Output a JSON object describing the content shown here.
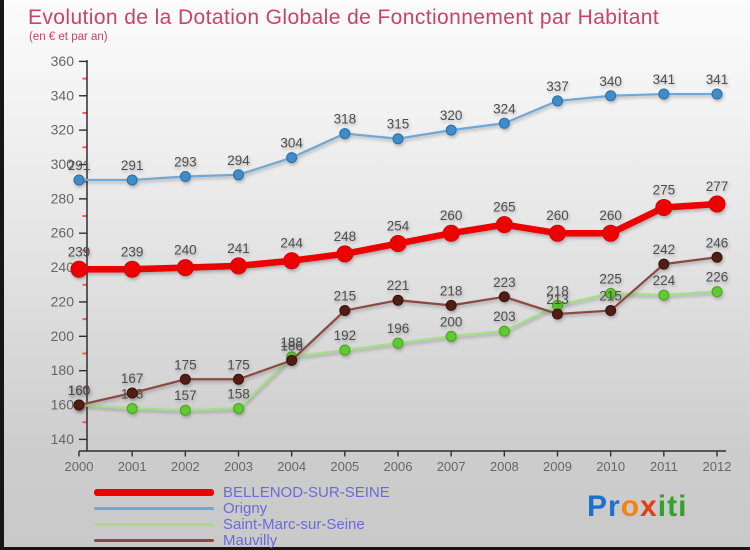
{
  "header": {
    "title": "Evolution de la Dotation Globale de Fonctionnement par Habitant",
    "subtitle": "(en € et par an)",
    "title_color": "#c94365"
  },
  "chart_data": {
    "type": "line",
    "title": "Evolution de la Dotation Globale de Fonctionnement par Habitant",
    "subtitle": "(en € et par an)",
    "xlabel": "",
    "ylabel": "",
    "x": [
      2000,
      2001,
      2002,
      2003,
      2004,
      2005,
      2006,
      2007,
      2008,
      2009,
      2010,
      2011,
      2012
    ],
    "series": [
      {
        "name": "BELLENOD-SUR-SEINE",
        "values": [
          239,
          239,
          240,
          241,
          244,
          248,
          254,
          260,
          265,
          260,
          260,
          275,
          277
        ],
        "line_color": "#ec0000",
        "dot_color": "#ec0000",
        "dot_stroke": "#d40000",
        "line_width": 6.5,
        "dot_radius": 8,
        "draw_order": 3
      },
      {
        "name": "Origny",
        "values": [
          291,
          291,
          293,
          294,
          304,
          318,
          315,
          320,
          324,
          337,
          340,
          341,
          341
        ],
        "line_color": "#6fa8d6",
        "dot_color": "#3f8cc9",
        "dot_stroke": "#2e6ea6",
        "line_width": 2.2,
        "dot_radius": 5,
        "draw_order": 0
      },
      {
        "name": "Saint-Marc-sur-Seine",
        "values": [
          160,
          158,
          157,
          158,
          188,
          192,
          196,
          200,
          203,
          218,
          225,
          224,
          226
        ],
        "line_color": "#a4df87",
        "dot_color": "#5ecb30",
        "dot_stroke": "#49a21f",
        "line_width": 2.2,
        "dot_radius": 5,
        "draw_order": 1
      },
      {
        "name": "Mauvilly",
        "values": [
          160,
          167,
          175,
          175,
          186,
          215,
          221,
          218,
          223,
          213,
          215,
          242,
          246
        ],
        "line_color": "#8a4a42",
        "dot_color": "#521d14",
        "dot_stroke": "#3a120c",
        "line_width": 2.2,
        "dot_radius": 5,
        "draw_order": 2
      }
    ],
    "ylim": [
      140,
      360
    ],
    "ytick_step": 20,
    "yticks": [
      140,
      160,
      180,
      200,
      220,
      240,
      260,
      280,
      300,
      320,
      340,
      360
    ],
    "grid": false,
    "legend_position": "bottom-left",
    "axis_color": "#2f2f2f",
    "tick_label_color": "#666666",
    "value_label_color": "#4d4d4d",
    "minor_tick_color": "#ff5555"
  },
  "legend": {
    "text_color": "#6b6bd6"
  },
  "logo": {
    "text": "Proxiti",
    "letters": [
      {
        "ch": "P",
        "color": "#1d6fd0"
      },
      {
        "ch": "r",
        "color": "#1d6fd0"
      },
      {
        "ch": "o",
        "color": "#f5820b"
      },
      {
        "ch": "x",
        "color": "#e33d11"
      },
      {
        "ch": "i",
        "color": "#2ea42b"
      },
      {
        "ch": "t",
        "color": "#2ea42b"
      },
      {
        "ch": "i",
        "color": "#2ea42b"
      }
    ]
  }
}
